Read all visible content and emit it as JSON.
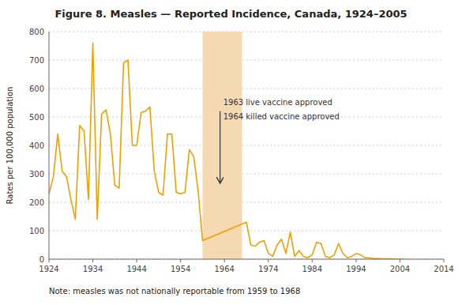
{
  "chart_data": {
    "type": "line",
    "title": "Figure 8. Measles — Reported Incidence, Canada, 1924–2005",
    "ylabel": "Rates per 100,000 population",
    "note": "Note: measles was not nationally reportable from 1959 to 1968",
    "xlim": [
      1924,
      2014
    ],
    "xticks": [
      1924,
      1934,
      1944,
      1954,
      1964,
      1974,
      1984,
      1994,
      2004,
      2014
    ],
    "ylim": [
      0,
      800
    ],
    "yticks": [
      0,
      100,
      200,
      300,
      400,
      500,
      600,
      700,
      800
    ],
    "grid": true,
    "color": "#f0a000",
    "shade": {
      "start": 1959,
      "end": 1968,
      "color": "#f5d9b0"
    },
    "annotation": {
      "x": 1963,
      "y_from": 520,
      "y_to": 270,
      "texts": [
        "1963 live vaccine approved",
        "1964 killed vaccine approved"
      ]
    },
    "x": [
      1924,
      1925,
      1926,
      1927,
      1928,
      1929,
      1930,
      1931,
      1932,
      1933,
      1934,
      1935,
      1936,
      1937,
      1938,
      1939,
      1940,
      1941,
      1942,
      1943,
      1944,
      1945,
      1946,
      1947,
      1948,
      1949,
      1950,
      1951,
      1952,
      1953,
      1954,
      1955,
      1956,
      1957,
      1958,
      1959,
      1969,
      1970,
      1971,
      1972,
      1973,
      1974,
      1975,
      1976,
      1977,
      1978,
      1979,
      1980,
      1981,
      1982,
      1983,
      1984,
      1985,
      1986,
      1987,
      1988,
      1989,
      1990,
      1991,
      1992,
      1993,
      1994,
      1995,
      1996,
      1997,
      1998,
      1999,
      2000,
      2001,
      2002,
      2003,
      2004,
      2005
    ],
    "values": [
      230,
      290,
      440,
      310,
      290,
      210,
      140,
      470,
      450,
      210,
      760,
      140,
      510,
      525,
      440,
      260,
      250,
      690,
      700,
      400,
      400,
      515,
      520,
      535,
      310,
      235,
      225,
      440,
      440,
      235,
      230,
      235,
      385,
      360,
      240,
      65,
      130,
      50,
      45,
      60,
      65,
      20,
      10,
      50,
      70,
      20,
      95,
      10,
      30,
      10,
      5,
      15,
      60,
      55,
      10,
      5,
      15,
      55,
      20,
      5,
      10,
      20,
      15,
      5,
      5,
      2,
      2,
      1,
      1,
      1,
      0,
      0,
      0
    ]
  }
}
